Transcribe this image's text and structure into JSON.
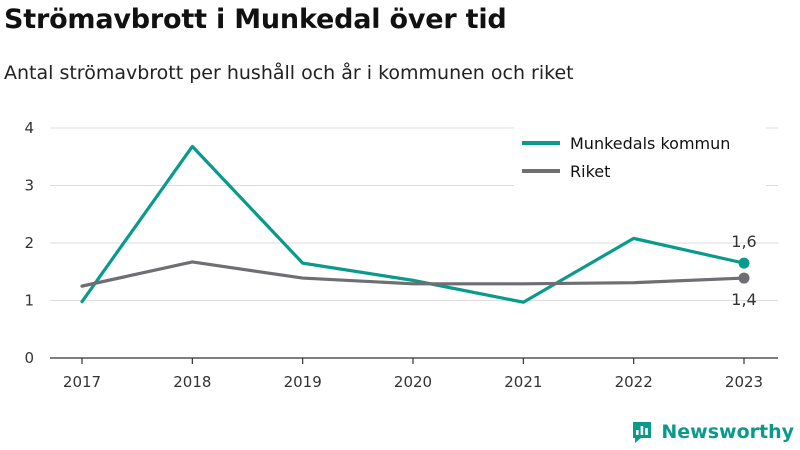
{
  "title": "Strömavbrott i Munkedal över tid",
  "subtitle": "Antal strömavbrott per hushåll och år i kommunen och riket",
  "brand": {
    "name": "Newsworthy",
    "icon": "newsworthy-logo-icon",
    "color": "#0a9a8c"
  },
  "chart_data": {
    "type": "line",
    "x": [
      "2017",
      "2018",
      "2019",
      "2020",
      "2021",
      "2022",
      "2023"
    ],
    "yticks": [
      "0",
      "1",
      "2",
      "3",
      "4"
    ],
    "ylim": [
      0,
      4
    ],
    "grid": true,
    "legend_position": "top-right",
    "series": [
      {
        "name": "Munkedals kommun",
        "color": "#0a9a8c",
        "values": [
          0.98,
          3.68,
          1.65,
          1.35,
          0.97,
          2.08,
          1.65
        ],
        "end_label": "1,6"
      },
      {
        "name": "Riket",
        "color": "#6e6e73",
        "values": [
          1.25,
          1.67,
          1.39,
          1.29,
          1.29,
          1.31,
          1.39
        ],
        "end_label": "1,4"
      }
    ]
  }
}
